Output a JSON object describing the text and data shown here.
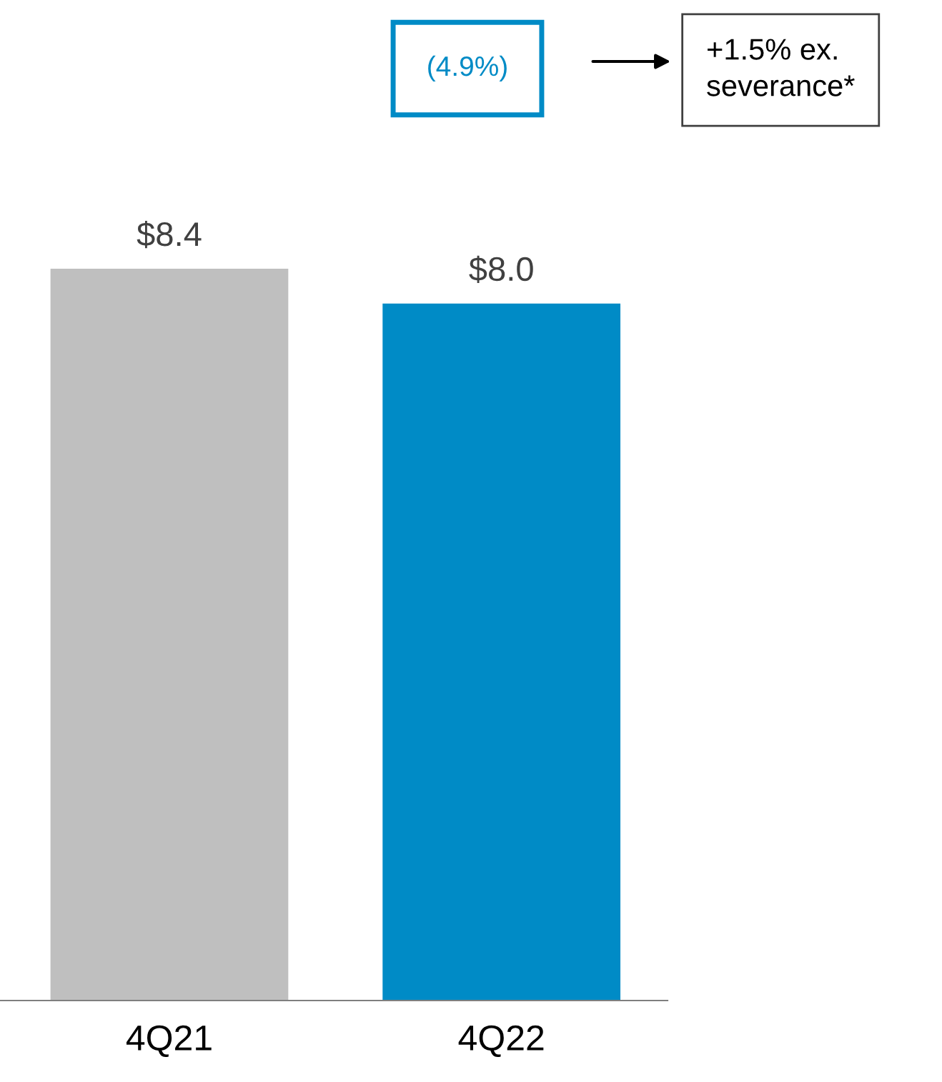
{
  "chart_data": {
    "type": "bar",
    "categories": [
      "4Q21",
      "4Q22"
    ],
    "values": [
      8.4,
      8.0
    ],
    "value_labels": [
      "$8.4",
      "$8.0"
    ],
    "colors": [
      "#bfbfbf",
      "#008bc6"
    ],
    "annotations": [
      "(4.9%)",
      "+1.5% ex.\nseverance*"
    ],
    "grid": false,
    "legend": false
  }
}
